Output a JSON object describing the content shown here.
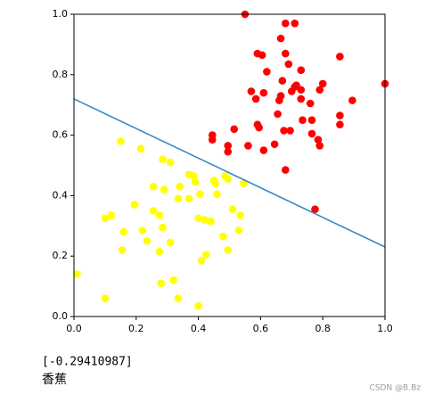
{
  "chart_data": {
    "type": "scatter",
    "xlim": [
      0,
      1
    ],
    "ylim": [
      0,
      1
    ],
    "xticks": [
      {
        "value": 0,
        "label": "0.0"
      },
      {
        "value": 0.2,
        "label": "0.2"
      },
      {
        "value": 0.4,
        "label": "0.4"
      },
      {
        "value": 0.6,
        "label": "0.6"
      },
      {
        "value": 0.8,
        "label": "0.8"
      },
      {
        "value": 1,
        "label": "1.0"
      }
    ],
    "yticks": [
      {
        "value": 0,
        "label": "0.0"
      },
      {
        "value": 0.2,
        "label": "0.2"
      },
      {
        "value": 0.4,
        "label": "0.4"
      },
      {
        "value": 0.6,
        "label": "0.6"
      },
      {
        "value": 0.8,
        "label": "0.8"
      },
      {
        "value": 1,
        "label": "1.0"
      }
    ],
    "series": [
      {
        "color": "#ff0000",
        "x": [
          0.55,
          0.68,
          0.71,
          0.665,
          0.59,
          0.605,
          0.68,
          0.855,
          0.69,
          0.73,
          0.62,
          0.67,
          0.71,
          0.715,
          0.8,
          1.0,
          0.79,
          0.7,
          0.73,
          0.57,
          0.61,
          0.665,
          0.66,
          0.585,
          0.76,
          0.895,
          0.73,
          0.655,
          0.855,
          0.735,
          0.765,
          0.855,
          0.59,
          0.515,
          0.595,
          0.675,
          0.695,
          0.765,
          0.445,
          0.445,
          0.645,
          0.56,
          0.785,
          0.79,
          0.495,
          0.495,
          0.61,
          0.68,
          0.775
        ],
        "y": [
          1.0,
          0.97,
          0.97,
          0.92,
          0.87,
          0.865,
          0.87,
          0.86,
          0.835,
          0.815,
          0.81,
          0.78,
          0.76,
          0.765,
          0.77,
          0.77,
          0.75,
          0.745,
          0.75,
          0.745,
          0.74,
          0.73,
          0.715,
          0.72,
          0.705,
          0.715,
          0.72,
          0.67,
          0.665,
          0.65,
          0.65,
          0.635,
          0.635,
          0.62,
          0.625,
          0.615,
          0.615,
          0.605,
          0.6,
          0.585,
          0.57,
          0.565,
          0.585,
          0.565,
          0.565,
          0.545,
          0.55,
          0.485,
          0.355
        ]
      },
      {
        "color": "#ffff00",
        "x": [
          0.15,
          0.215,
          0.285,
          0.31,
          0.37,
          0.385,
          0.485,
          0.495,
          0.39,
          0.45,
          0.455,
          0.545,
          0.255,
          0.29,
          0.34,
          0.46,
          0.405,
          0.335,
          0.37,
          0.195,
          0.51,
          0.255,
          0.275,
          0.12,
          0.1,
          0.4,
          0.42,
          0.44,
          0.535,
          0.285,
          0.22,
          0.53,
          0.16,
          0.48,
          0.235,
          0.31,
          0.495,
          0.155,
          0.275,
          0.425,
          0.41,
          0.01,
          0.32,
          0.28,
          0.1,
          0.335,
          0.4
        ],
        "y": [
          0.58,
          0.555,
          0.52,
          0.51,
          0.47,
          0.465,
          0.465,
          0.455,
          0.445,
          0.45,
          0.44,
          0.44,
          0.43,
          0.42,
          0.43,
          0.405,
          0.405,
          0.39,
          0.39,
          0.37,
          0.355,
          0.35,
          0.335,
          0.335,
          0.325,
          0.325,
          0.32,
          0.315,
          0.335,
          0.295,
          0.285,
          0.285,
          0.28,
          0.265,
          0.25,
          0.245,
          0.22,
          0.22,
          0.215,
          0.205,
          0.185,
          0.14,
          0.12,
          0.11,
          0.06,
          0.06,
          0.035
        ]
      }
    ],
    "line": {
      "color": "#3a8ac4",
      "x": [
        0,
        1
      ],
      "y": [
        0.72,
        0.23
      ]
    }
  },
  "output": [
    "[-0.29410987]",
    "香蕉"
  ],
  "watermark": "CSDN @B.Bz"
}
